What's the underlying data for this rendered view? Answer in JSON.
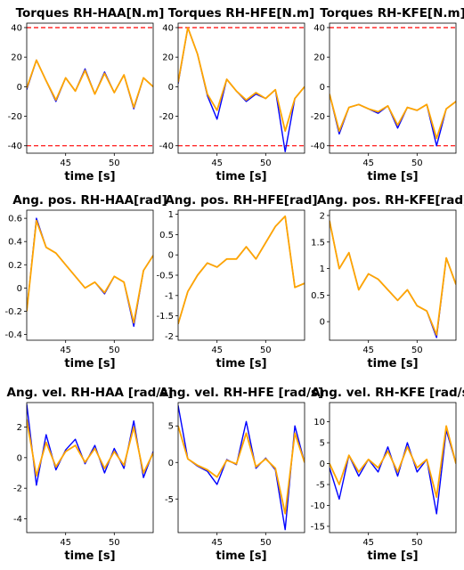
{
  "chart_data": [
    {
      "type": "line",
      "title": "Torques RH-HAA[N.m]",
      "xlabel": "time [s]",
      "xlim": [
        41,
        54
      ],
      "ylim": [
        -45,
        43
      ],
      "yticks": [
        -40,
        -20,
        0,
        20,
        40
      ],
      "xticks": [
        45,
        50
      ],
      "limits": [
        40,
        -40
      ],
      "series": [
        {
          "color": "#0000ff",
          "x": [
            41,
            42,
            43,
            44,
            45,
            46,
            47,
            48,
            49,
            50,
            51,
            52,
            53,
            54
          ],
          "y": [
            -2,
            18,
            4,
            -10,
            6,
            -3,
            12,
            -5,
            10,
            -4,
            8,
            -15,
            6,
            0
          ]
        },
        {
          "color": "#ffa500",
          "x": [
            41,
            42,
            43,
            44,
            45,
            46,
            47,
            48,
            49,
            50,
            51,
            52,
            53,
            54
          ],
          "y": [
            -1,
            18,
            4,
            -9,
            6,
            -3,
            11,
            -5,
            9,
            -4,
            8,
            -14,
            6,
            0
          ]
        }
      ]
    },
    {
      "type": "line",
      "title": "Torques RH-HFE[N.m]",
      "xlabel": "time [s]",
      "xlim": [
        41,
        54
      ],
      "ylim": [
        -45,
        43
      ],
      "yticks": [
        -40,
        -20,
        0,
        20,
        40
      ],
      "xticks": [
        45,
        50
      ],
      "limits": [
        40,
        -40
      ],
      "series": [
        {
          "color": "#0000ff",
          "x": [
            41,
            42,
            43,
            44,
            45,
            46,
            47,
            48,
            49,
            50,
            51,
            52,
            53,
            54
          ],
          "y": [
            2,
            40,
            22,
            -6,
            -22,
            5,
            -3,
            -10,
            -5,
            -8,
            -2,
            -44,
            -8,
            0
          ]
        },
        {
          "color": "#ffa500",
          "x": [
            41,
            42,
            43,
            44,
            45,
            46,
            47,
            48,
            49,
            50,
            51,
            52,
            53,
            54
          ],
          "y": [
            3,
            40,
            22,
            -5,
            -16,
            5,
            -3,
            -9,
            -4,
            -8,
            -2,
            -30,
            -8,
            0
          ]
        }
      ]
    },
    {
      "type": "line",
      "title": "Torques RH-KFE[N.m]",
      "xlabel": "time [s]",
      "xlim": [
        41,
        54
      ],
      "ylim": [
        -45,
        43
      ],
      "yticks": [
        -40,
        -20,
        0,
        20,
        40
      ],
      "xticks": [
        45,
        50
      ],
      "limits": [
        40,
        -40
      ],
      "series": [
        {
          "color": "#0000ff",
          "x": [
            41,
            42,
            43,
            44,
            45,
            46,
            47,
            48,
            49,
            50,
            51,
            52,
            53,
            54
          ],
          "y": [
            -5,
            -32,
            -14,
            -12,
            -15,
            -18,
            -13,
            -28,
            -14,
            -16,
            -12,
            -40,
            -15,
            -10
          ]
        },
        {
          "color": "#ffa500",
          "x": [
            41,
            42,
            43,
            44,
            45,
            46,
            47,
            48,
            49,
            50,
            51,
            52,
            53,
            54
          ],
          "y": [
            -5,
            -30,
            -14,
            -12,
            -15,
            -17,
            -13,
            -26,
            -14,
            -16,
            -12,
            -35,
            -15,
            -10
          ]
        }
      ]
    },
    {
      "type": "line",
      "title": "Ang. pos. RH-HAA[rad]",
      "xlabel": "time [s]",
      "xlim": [
        41,
        54
      ],
      "ylim": [
        -0.45,
        0.67
      ],
      "yticks": [
        -0.4,
        -0.2,
        0.0,
        0.2,
        0.4,
        0.6
      ],
      "xticks": [
        45,
        50
      ],
      "series": [
        {
          "color": "#0000ff",
          "x": [
            41,
            42,
            43,
            44,
            45,
            46,
            47,
            48,
            49,
            50,
            51,
            52,
            53,
            54
          ],
          "y": [
            -0.2,
            0.6,
            0.35,
            0.3,
            0.2,
            0.1,
            0.0,
            0.05,
            -0.05,
            0.1,
            0.05,
            -0.33,
            0.15,
            0.28
          ]
        },
        {
          "color": "#ffa500",
          "x": [
            41,
            42,
            43,
            44,
            45,
            46,
            47,
            48,
            49,
            50,
            51,
            52,
            53,
            54
          ],
          "y": [
            -0.2,
            0.58,
            0.35,
            0.3,
            0.2,
            0.1,
            0.0,
            0.05,
            -0.04,
            0.1,
            0.05,
            -0.3,
            0.15,
            0.28
          ]
        }
      ]
    },
    {
      "type": "line",
      "title": "Ang. pos. RH-HFE[rad]",
      "xlabel": "time [s]",
      "xlim": [
        41,
        54
      ],
      "ylim": [
        -2.1,
        1.1
      ],
      "yticks": [
        -2.0,
        -1.5,
        -1.0,
        -0.5,
        0.0,
        0.5,
        1.0
      ],
      "xticks": [
        45,
        50
      ],
      "series": [
        {
          "color": "#0000ff",
          "x": [
            41,
            42,
            43,
            44,
            45,
            46,
            47,
            48,
            49,
            50,
            51,
            52,
            53,
            54
          ],
          "y": [
            -1.7,
            -0.9,
            -0.5,
            -0.2,
            -0.3,
            -0.1,
            -0.1,
            0.2,
            -0.1,
            0.3,
            0.7,
            0.95,
            -0.8,
            -0.7
          ]
        },
        {
          "color": "#ffa500",
          "x": [
            41,
            42,
            43,
            44,
            45,
            46,
            47,
            48,
            49,
            50,
            51,
            52,
            53,
            54
          ],
          "y": [
            -1.7,
            -0.9,
            -0.5,
            -0.2,
            -0.3,
            -0.1,
            -0.1,
            0.2,
            -0.1,
            0.3,
            0.7,
            0.95,
            -0.8,
            -0.7
          ]
        }
      ]
    },
    {
      "type": "line",
      "title": "Ang. pos. RH-KFE[rad]",
      "xlabel": "time [s]",
      "xlim": [
        41,
        54
      ],
      "ylim": [
        -0.35,
        2.1
      ],
      "yticks": [
        0.0,
        0.5,
        1.0,
        1.5,
        2.0
      ],
      "xticks": [
        45,
        50
      ],
      "series": [
        {
          "color": "#0000ff",
          "x": [
            41,
            42,
            43,
            44,
            45,
            46,
            47,
            48,
            49,
            50,
            51,
            52,
            53,
            54
          ],
          "y": [
            1.9,
            1.0,
            1.3,
            0.6,
            0.9,
            0.8,
            0.6,
            0.4,
            0.6,
            0.3,
            0.2,
            -0.3,
            1.2,
            0.7
          ]
        },
        {
          "color": "#ffa500",
          "x": [
            41,
            42,
            43,
            44,
            45,
            46,
            47,
            48,
            49,
            50,
            51,
            52,
            53,
            54
          ],
          "y": [
            1.9,
            1.0,
            1.3,
            0.6,
            0.9,
            0.8,
            0.6,
            0.4,
            0.6,
            0.3,
            0.2,
            -0.25,
            1.2,
            0.7
          ]
        }
      ]
    },
    {
      "type": "line",
      "title": "Ang. vel. RH-HAA [rad/s]",
      "xlabel": "time [s]",
      "xlim": [
        41,
        54
      ],
      "ylim": [
        -4.9,
        3.6
      ],
      "yticks": [
        -4,
        -2,
        0,
        2
      ],
      "xticks": [
        45,
        50
      ],
      "series": [
        {
          "color": "#0000ff",
          "x": [
            41,
            42,
            43,
            44,
            45,
            46,
            47,
            48,
            49,
            50,
            51,
            52,
            53,
            54
          ],
          "y": [
            3.5,
            -1.8,
            1.5,
            -0.8,
            0.5,
            1.2,
            -0.4,
            0.8,
            -1.0,
            0.6,
            -0.7,
            2.4,
            -1.3,
            0.4
          ]
        },
        {
          "color": "#ffa500",
          "x": [
            41,
            42,
            43,
            44,
            45,
            46,
            47,
            48,
            49,
            50,
            51,
            52,
            53,
            54
          ],
          "y": [
            2.5,
            -1.2,
            1.0,
            -0.6,
            0.4,
            0.8,
            -0.3,
            0.6,
            -0.7,
            0.4,
            -0.5,
            2.0,
            -1.0,
            0.3
          ]
        }
      ]
    },
    {
      "type": "line",
      "title": "Ang. vel. RH-HFE [rad/s]",
      "xlabel": "time [s]",
      "xlim": [
        41,
        54
      ],
      "ylim": [
        -9.6,
        8.2
      ],
      "yticks": [
        -5,
        0,
        5
      ],
      "xticks": [
        45,
        50
      ],
      "series": [
        {
          "color": "#0000ff",
          "x": [
            41,
            42,
            43,
            44,
            45,
            46,
            47,
            48,
            49,
            50,
            51,
            52,
            53,
            54
          ],
          "y": [
            7.8,
            0.5,
            -0.5,
            -1.2,
            -3.0,
            0.4,
            -0.3,
            5.6,
            -0.8,
            0.6,
            -1.0,
            -9.2,
            5.0,
            0.0
          ]
        },
        {
          "color": "#ffa500",
          "x": [
            41,
            42,
            43,
            44,
            45,
            46,
            47,
            48,
            49,
            50,
            51,
            52,
            53,
            54
          ],
          "y": [
            5.0,
            0.5,
            -0.4,
            -1.0,
            -2.0,
            0.3,
            -0.2,
            4.0,
            -0.6,
            0.5,
            -0.8,
            -7.0,
            4.0,
            0.0
          ]
        }
      ]
    },
    {
      "type": "line",
      "title": "Ang. vel. RH-KFE [rad/s]",
      "xlabel": "time [s]",
      "xlim": [
        41,
        54
      ],
      "ylim": [
        -16.5,
        14.6
      ],
      "yticks": [
        -15,
        -10,
        -5,
        0,
        5,
        10
      ],
      "xticks": [
        45,
        50
      ],
      "series": [
        {
          "color": "#0000ff",
          "x": [
            41,
            42,
            43,
            44,
            45,
            46,
            47,
            48,
            49,
            50,
            51,
            52,
            53,
            54
          ],
          "y": [
            -1,
            -8.5,
            2,
            -3,
            1,
            -2,
            4,
            -3,
            5,
            -2,
            1,
            -12,
            8,
            0
          ]
        },
        {
          "color": "#ffa500",
          "x": [
            41,
            42,
            43,
            44,
            45,
            46,
            47,
            48,
            49,
            50,
            51,
            52,
            53,
            54
          ],
          "y": [
            0,
            -5,
            2,
            -2,
            1,
            -1,
            3,
            -2,
            4,
            -1,
            1,
            -8,
            9,
            0
          ]
        }
      ]
    }
  ]
}
